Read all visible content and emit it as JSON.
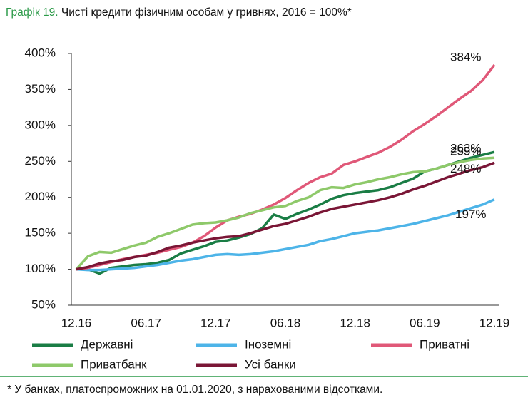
{
  "chart_data": {
    "type": "line",
    "title_number": "Графік 19.",
    "title": "Чисті кредити фізичним особам у гривнях, 2016 = 100%*",
    "note": "* У банках, платоспроможних на 01.01.2020, з нарахованими відсотками.",
    "categories": [
      "12.16",
      null,
      null,
      null,
      null,
      null,
      "06.17",
      null,
      null,
      null,
      null,
      null,
      "12.17",
      null,
      null,
      null,
      null,
      null,
      "06.18",
      null,
      null,
      null,
      null,
      null,
      "12.18",
      null,
      null,
      null,
      null,
      null,
      "06.19",
      null,
      null,
      null,
      null,
      null,
      "12.19"
    ],
    "ylim": [
      50,
      400
    ],
    "yticks": [
      {
        "value": 50,
        "label": "50%"
      },
      {
        "value": 100,
        "label": "100%"
      },
      {
        "value": 150,
        "label": "150%"
      },
      {
        "value": 200,
        "label": "200%"
      },
      {
        "value": 250,
        "label": "250%"
      },
      {
        "value": 300,
        "label": "300%"
      },
      {
        "value": 350,
        "label": "350%"
      },
      {
        "value": 400,
        "label": "400%"
      }
    ],
    "grid": false,
    "series": [
      {
        "name": "Державні",
        "color": "#1a7d45",
        "values": [
          100,
          100,
          94,
          102,
          104,
          106,
          107,
          109,
          113,
          122,
          127,
          132,
          138,
          140,
          144,
          149,
          157,
          176,
          170,
          177,
          183,
          190,
          198,
          203,
          206,
          208,
          210,
          214,
          220,
          226,
          236,
          240,
          245,
          250,
          255,
          259,
          263
        ],
        "value_labels": [
          null,
          null,
          null,
          null,
          null,
          null,
          null,
          null,
          null,
          null,
          null,
          null,
          null,
          null,
          null,
          null,
          null,
          null,
          null,
          null,
          null,
          null,
          null,
          null,
          null,
          null,
          null,
          null,
          null,
          null,
          null,
          null,
          null,
          null,
          null,
          null,
          "263%"
        ]
      },
      {
        "name": "Іноземні",
        "color": "#4db4e8",
        "values": [
          100,
          99,
          99,
          100,
          101,
          102,
          104,
          106,
          109,
          112,
          114,
          117,
          120,
          121,
          120,
          121,
          123,
          125,
          128,
          131,
          134,
          139,
          142,
          146,
          150,
          152,
          154,
          157,
          160,
          163,
          167,
          171,
          175,
          180,
          185,
          190,
          197
        ],
        "value_labels": [
          null,
          null,
          null,
          null,
          null,
          null,
          null,
          null,
          null,
          null,
          null,
          null,
          null,
          null,
          null,
          null,
          null,
          null,
          null,
          null,
          null,
          null,
          null,
          null,
          null,
          null,
          null,
          null,
          null,
          null,
          null,
          null,
          null,
          null,
          null,
          null,
          "197%"
        ]
      },
      {
        "name": "Приватні",
        "color": "#e05878",
        "values": [
          100,
          102,
          106,
          110,
          114,
          117,
          120,
          123,
          127,
          131,
          137,
          146,
          158,
          168,
          173,
          177,
          183,
          190,
          199,
          210,
          220,
          228,
          233,
          245,
          250,
          256,
          262,
          270,
          280,
          292,
          302,
          313,
          325,
          337,
          348,
          363,
          384
        ],
        "value_labels": [
          null,
          null,
          null,
          null,
          null,
          null,
          null,
          null,
          null,
          null,
          null,
          null,
          null,
          null,
          null,
          null,
          null,
          null,
          null,
          null,
          null,
          null,
          null,
          null,
          null,
          null,
          null,
          null,
          null,
          null,
          null,
          null,
          null,
          null,
          null,
          null,
          "384%"
        ]
      },
      {
        "name": "Приватбанк",
        "color": "#8ec96a",
        "values": [
          100,
          118,
          124,
          123,
          128,
          133,
          137,
          145,
          150,
          156,
          162,
          164,
          165,
          168,
          172,
          178,
          182,
          186,
          188,
          195,
          200,
          210,
          214,
          213,
          218,
          221,
          225,
          228,
          232,
          235,
          236,
          240,
          245,
          249,
          252,
          254,
          255
        ],
        "value_labels": [
          null,
          null,
          null,
          null,
          null,
          null,
          null,
          null,
          null,
          null,
          null,
          null,
          null,
          null,
          null,
          null,
          null,
          null,
          null,
          null,
          null,
          null,
          null,
          null,
          null,
          null,
          null,
          null,
          null,
          null,
          null,
          null,
          null,
          null,
          null,
          null,
          "255%"
        ]
      },
      {
        "name": "Усі банки",
        "color": "#7a1636",
        "values": [
          100,
          103,
          108,
          111,
          113,
          117,
          119,
          124,
          130,
          133,
          137,
          140,
          143,
          145,
          146,
          150,
          155,
          160,
          163,
          168,
          173,
          179,
          184,
          187,
          190,
          193,
          196,
          200,
          205,
          211,
          216,
          222,
          228,
          233,
          238,
          242,
          248
        ],
        "value_labels": [
          null,
          null,
          null,
          null,
          null,
          null,
          null,
          null,
          null,
          null,
          null,
          null,
          null,
          null,
          null,
          null,
          null,
          null,
          null,
          null,
          null,
          null,
          null,
          null,
          null,
          null,
          null,
          null,
          null,
          null,
          null,
          null,
          null,
          null,
          null,
          null,
          "248%"
        ]
      }
    ]
  }
}
